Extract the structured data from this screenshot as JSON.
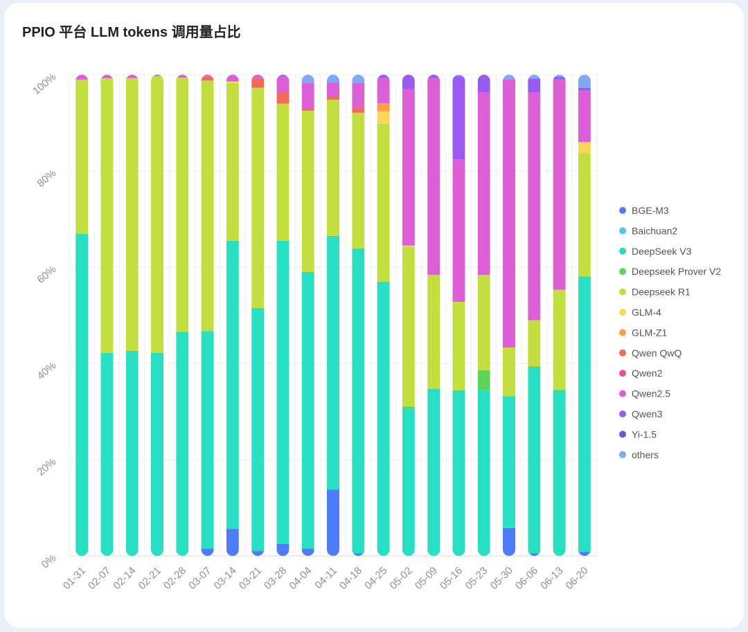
{
  "chart_data": {
    "type": "bar",
    "stacked": true,
    "normalized": true,
    "title": "PPIO 平台 LLM tokens 调用量占比",
    "ylim": [
      0,
      100
    ],
    "yticks": [
      "0%",
      "20%",
      "40%",
      "60%",
      "80%",
      "100%"
    ],
    "grid": true,
    "legend_position": "right",
    "categories": [
      "01-31",
      "02-07",
      "02-14",
      "02-21",
      "02-28",
      "03-07",
      "03-14",
      "03-21",
      "03-28",
      "04-04",
      "04-11",
      "04-18",
      "04-25",
      "05-02",
      "05-09",
      "05-16",
      "05-23",
      "05-30",
      "06-06",
      "06-13",
      "06-20"
    ],
    "series": [
      {
        "name": "BGE-M3",
        "color": "#4e7cf6",
        "values": [
          0,
          0,
          0,
          0,
          0,
          1.5,
          5.6,
          1,
          2.5,
          1.5,
          13.8,
          0.5,
          0,
          0,
          0,
          0,
          0,
          5.8,
          0.5,
          0,
          0.8
        ]
      },
      {
        "name": "Baichuan2",
        "color": "#4cc9f0",
        "values": [
          0,
          0,
          0,
          0,
          0,
          0,
          0,
          0,
          0,
          0,
          0,
          0,
          0,
          0,
          0,
          0,
          0,
          0,
          0,
          0,
          0
        ]
      },
      {
        "name": "DeepSeek V3",
        "color": "#29dfc3",
        "values": [
          66.9,
          42.2,
          42.6,
          42.2,
          46.6,
          45.2,
          59.9,
          50.5,
          63,
          57.5,
          52.7,
          63.4,
          57,
          30.6,
          34.7,
          34.1,
          34.5,
          27.4,
          38.5,
          34.5,
          57.3
        ]
      },
      {
        "name": "Deepseek Prover V2",
        "color": "#5dd35a",
        "values": [
          0,
          0,
          0,
          0,
          0,
          0,
          0,
          0,
          0,
          0,
          0,
          0,
          0,
          0.4,
          0,
          0.3,
          4.1,
          0,
          0.4,
          0,
          0
        ]
      },
      {
        "name": "Deepseek R1",
        "color": "#c2df3f",
        "values": [
          32.1,
          57.1,
          56.7,
          57.5,
          52.8,
          52.1,
          32.8,
          45.8,
          28.5,
          33.5,
          28.3,
          28.2,
          32.8,
          33.3,
          23.7,
          18.4,
          19.8,
          10.1,
          9.6,
          20.8,
          25.6
        ]
      },
      {
        "name": "GLM-4",
        "color": "#fbd65a",
        "values": [
          0,
          0,
          0,
          0,
          0,
          0,
          0.3,
          0,
          0,
          0,
          0,
          0,
          2.6,
          0.2,
          0,
          0,
          0,
          0,
          0,
          0,
          2.3
        ]
      },
      {
        "name": "GLM-Z1",
        "color": "#fca043",
        "values": [
          0,
          0,
          0,
          0,
          0,
          0,
          0,
          0,
          0,
          0,
          0,
          0,
          1.7,
          0,
          0,
          0,
          0,
          0,
          0,
          0,
          0
        ]
      },
      {
        "name": "Qwen QwQ",
        "color": "#f26a5a",
        "values": [
          0,
          0,
          0,
          0,
          0,
          0.8,
          0,
          2,
          2.4,
          0.3,
          0.6,
          1.1,
          0,
          0,
          0,
          0,
          0,
          0,
          0,
          0,
          0
        ]
      },
      {
        "name": "Qwen2",
        "color": "#ec4f9c",
        "values": [
          0,
          0,
          0,
          0,
          0,
          0,
          0,
          0,
          0,
          0,
          0,
          0,
          0,
          0,
          0,
          0,
          0,
          0,
          0,
          0,
          0
        ]
      },
      {
        "name": "Qwen2.5",
        "color": "#dc5fd6",
        "values": [
          1,
          0.7,
          0.7,
          0.3,
          0.6,
          0.4,
          1.4,
          0.7,
          3.2,
          5.5,
          3,
          5.1,
          5.2,
          32.5,
          40.9,
          29.6,
          38,
          55.8,
          47.3,
          43.7,
          10.7
        ]
      },
      {
        "name": "Qwen3",
        "color": "#9a5bf0",
        "values": [
          0,
          0,
          0,
          0,
          0,
          0,
          0,
          0,
          0.4,
          0,
          0,
          0,
          0.7,
          3,
          0.7,
          17.3,
          3.6,
          0,
          2.9,
          0.6,
          0.6
        ]
      },
      {
        "name": "Yi-1.5",
        "color": "#5b5fd6",
        "values": [
          0,
          0,
          0,
          0,
          0,
          0,
          0,
          0,
          0,
          0,
          0,
          0,
          0,
          0,
          0,
          0,
          0,
          0,
          0,
          0,
          0
        ]
      },
      {
        "name": "others",
        "color": "#7fa8f5",
        "values": [
          0,
          0,
          0,
          0,
          0,
          0,
          0,
          0,
          0,
          1.7,
          1.6,
          1.7,
          0,
          0,
          0,
          0.3,
          0,
          0.9,
          0.8,
          0.4,
          2.7
        ]
      }
    ]
  }
}
